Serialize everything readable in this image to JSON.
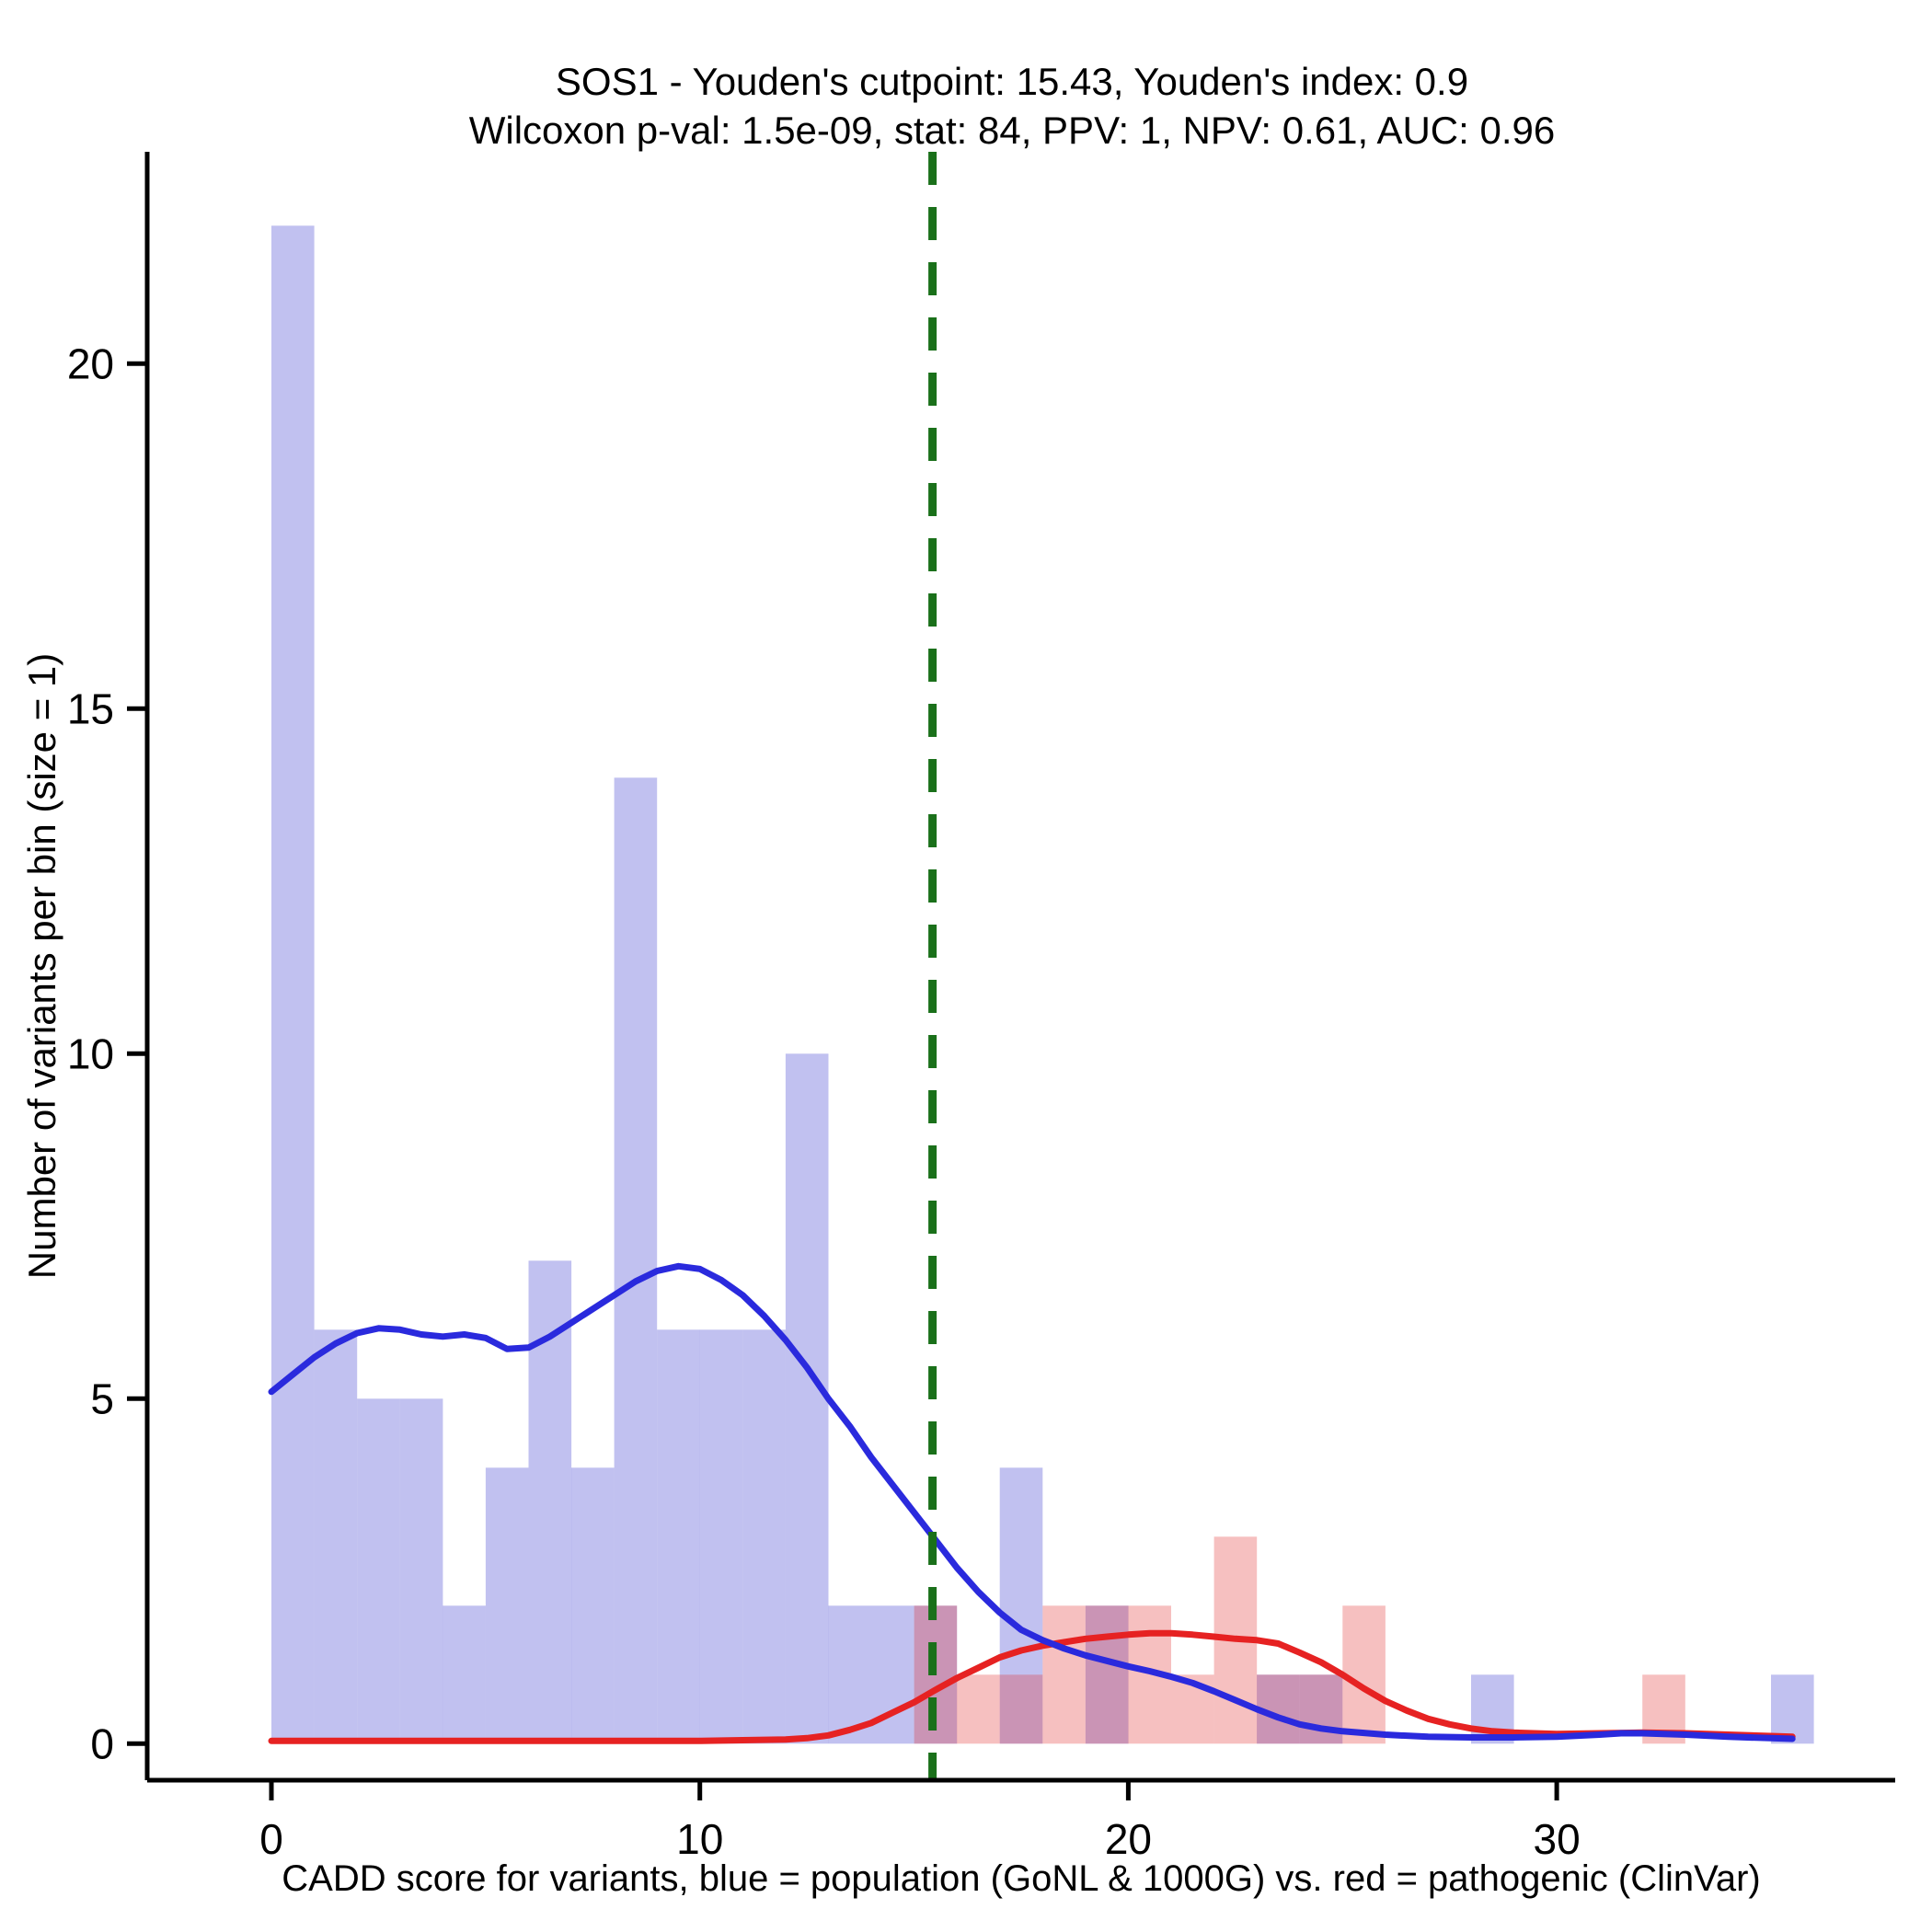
{
  "chart_data": {
    "type": "bar",
    "title": "SOS1 - Youden's cutpoint: 15.43, Youden's index: 0.9",
    "subtitle": "Wilcoxon p-val: 1.5e-09, stat: 84, PPV: 1, NPV: 0.61, AUC: 0.96",
    "xlabel": "CADD score for variants, blue = population (GoNL & 1000G) vs. red = pathogenic (ClinVar)",
    "ylabel": "Number of variants per bin (size = 1)",
    "x_ticks": [
      0,
      10,
      20,
      30
    ],
    "y_ticks": [
      0,
      5,
      10,
      15,
      20
    ],
    "xlim": [
      -2.9,
      37.9
    ],
    "ylim": [
      -0.53,
      23.07
    ],
    "cutpoint": 15.43,
    "youden_index": 0.9,
    "wilcoxon_p": "1.5e-09",
    "stat": 84,
    "ppv": 1,
    "npv": 0.61,
    "auc": 0.96,
    "histogram": {
      "bin_start": 0,
      "bin_width": 1,
      "blue_label": "population (GoNL & 1000G)",
      "red_label": "pathogenic (ClinVar)",
      "blue_counts": [
        22,
        6,
        5,
        5,
        2,
        4,
        7,
        4,
        14,
        6,
        6,
        6,
        10,
        2,
        2,
        2,
        0,
        4,
        0,
        2,
        0,
        0,
        0,
        1,
        1,
        0,
        0,
        0,
        1,
        0,
        0,
        0,
        0,
        0,
        0,
        1
      ],
      "red_counts": [
        0,
        0,
        0,
        0,
        0,
        0,
        0,
        0,
        0,
        0,
        0,
        0,
        0,
        0,
        0,
        2,
        1,
        1,
        2,
        2,
        2,
        1,
        3,
        1,
        1,
        2,
        0,
        0,
        0,
        0,
        0,
        0,
        1,
        0,
        0,
        0
      ]
    },
    "density": {
      "blue": [
        [
          0,
          5.1
        ],
        [
          0.5,
          5.35
        ],
        [
          1,
          5.6
        ],
        [
          1.5,
          5.8
        ],
        [
          2,
          5.95
        ],
        [
          2.5,
          6.02
        ],
        [
          3,
          6.0
        ],
        [
          3.5,
          5.93
        ],
        [
          4,
          5.9
        ],
        [
          4.5,
          5.93
        ],
        [
          5,
          5.88
        ],
        [
          5.5,
          5.72
        ],
        [
          6,
          5.74
        ],
        [
          6.5,
          5.9
        ],
        [
          7,
          6.1
        ],
        [
          7.5,
          6.3
        ],
        [
          8,
          6.5
        ],
        [
          8.5,
          6.7
        ],
        [
          9,
          6.85
        ],
        [
          9.5,
          6.92
        ],
        [
          10,
          6.88
        ],
        [
          10.5,
          6.72
        ],
        [
          11,
          6.5
        ],
        [
          11.5,
          6.2
        ],
        [
          12,
          5.85
        ],
        [
          12.5,
          5.45
        ],
        [
          13,
          5.0
        ],
        [
          13.5,
          4.6
        ],
        [
          14,
          4.15
        ],
        [
          14.5,
          3.75
        ],
        [
          15,
          3.35
        ],
        [
          15.5,
          2.95
        ],
        [
          16,
          2.55
        ],
        [
          16.5,
          2.2
        ],
        [
          17,
          1.9
        ],
        [
          17.5,
          1.65
        ],
        [
          18,
          1.5
        ],
        [
          18.5,
          1.38
        ],
        [
          19,
          1.28
        ],
        [
          19.5,
          1.2
        ],
        [
          20,
          1.12
        ],
        [
          20.5,
          1.05
        ],
        [
          21,
          0.97
        ],
        [
          21.5,
          0.88
        ],
        [
          22,
          0.76
        ],
        [
          22.5,
          0.63
        ],
        [
          23,
          0.5
        ],
        [
          23.5,
          0.38
        ],
        [
          24,
          0.28
        ],
        [
          24.5,
          0.22
        ],
        [
          25,
          0.18
        ],
        [
          26,
          0.13
        ],
        [
          27,
          0.1
        ],
        [
          28,
          0.09
        ],
        [
          29,
          0.09
        ],
        [
          30,
          0.1
        ],
        [
          31,
          0.13
        ],
        [
          31.5,
          0.15
        ],
        [
          32,
          0.15
        ],
        [
          33,
          0.13
        ],
        [
          34,
          0.1
        ],
        [
          35,
          0.08
        ],
        [
          35.5,
          0.07
        ]
      ],
      "red": [
        [
          0,
          0.04
        ],
        [
          2,
          0.04
        ],
        [
          4,
          0.04
        ],
        [
          6,
          0.04
        ],
        [
          8,
          0.04
        ],
        [
          10,
          0.04
        ],
        [
          11,
          0.05
        ],
        [
          12,
          0.06
        ],
        [
          12.5,
          0.08
        ],
        [
          13,
          0.12
        ],
        [
          13.5,
          0.2
        ],
        [
          14,
          0.3
        ],
        [
          14.5,
          0.45
        ],
        [
          15,
          0.6
        ],
        [
          15.5,
          0.78
        ],
        [
          16,
          0.95
        ],
        [
          16.5,
          1.1
        ],
        [
          17,
          1.25
        ],
        [
          17.5,
          1.35
        ],
        [
          18,
          1.42
        ],
        [
          18.5,
          1.47
        ],
        [
          19,
          1.52
        ],
        [
          19.5,
          1.55
        ],
        [
          20,
          1.58
        ],
        [
          20.5,
          1.6
        ],
        [
          21,
          1.6
        ],
        [
          21.5,
          1.58
        ],
        [
          22,
          1.55
        ],
        [
          22.5,
          1.52
        ],
        [
          23,
          1.5
        ],
        [
          23.5,
          1.45
        ],
        [
          24,
          1.32
        ],
        [
          24.5,
          1.18
        ],
        [
          25,
          1.0
        ],
        [
          25.5,
          0.8
        ],
        [
          26,
          0.62
        ],
        [
          26.5,
          0.48
        ],
        [
          27,
          0.36
        ],
        [
          27.5,
          0.28
        ],
        [
          28,
          0.22
        ],
        [
          28.5,
          0.18
        ],
        [
          29,
          0.16
        ],
        [
          30,
          0.14
        ],
        [
          31,
          0.15
        ],
        [
          32,
          0.16
        ],
        [
          33,
          0.15
        ],
        [
          34,
          0.13
        ],
        [
          35,
          0.11
        ],
        [
          35.5,
          0.1
        ]
      ]
    },
    "colors": {
      "blue_fill": "#3333cc",
      "red_fill": "#e03030",
      "blue_line": "#2a2add",
      "red_line": "#e62222",
      "cutpoint_line": "#1a701a",
      "axis": "#000000"
    }
  }
}
